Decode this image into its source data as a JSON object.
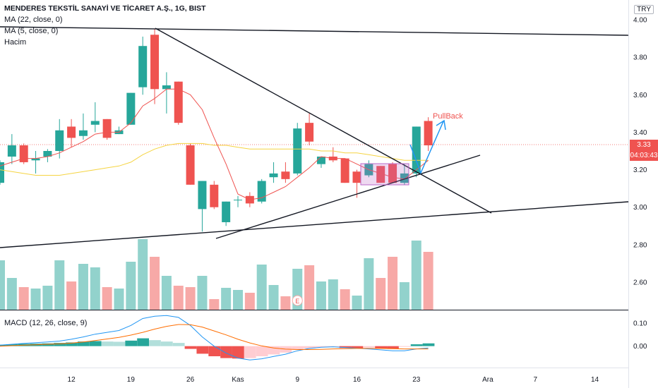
{
  "header": {
    "title": "MENDERES TEKSTİL SANAYİ VE TİCARET A.Ş., 1G, BIST",
    "ma22_label": "MA (22, close, 0)",
    "ma5_label": "MA (5, close, 0)",
    "volume_label": "Hacim",
    "macd_label": "MACD (12, 26, close, 9)",
    "currency": "TRY"
  },
  "current_price": {
    "value": "3.33",
    "countdown": "04:03:43",
    "color": "#ef5350"
  },
  "annotation": {
    "label": "PullBack",
    "color": "#ef5350"
  },
  "event_marker": {
    "label": "E"
  },
  "colors": {
    "up": "#26a69a",
    "down": "#ef5350",
    "ma22": "#f5d442",
    "ma5": "#ef5350",
    "macd": "#2196f3",
    "signal": "#ff6d00"
  },
  "chart_data": {
    "type": "candlestick",
    "price_axis": {
      "min": 2.45,
      "max": 4.0,
      "ticks": [
        2.6,
        2.8,
        3.0,
        3.2,
        3.4,
        3.6,
        3.8,
        4.0
      ],
      "tick_labels": [
        "2.60",
        "2.80",
        "3.00",
        "3.20",
        "3.40",
        "3.60",
        "3.80",
        "4.00"
      ]
    },
    "macd_axis": {
      "min": -0.09,
      "max": 0.14,
      "ticks": [
        0.0,
        0.1
      ],
      "tick_labels": [
        "0.00",
        "0.10"
      ]
    },
    "x_labels": [
      {
        "index": 6,
        "label": "12"
      },
      {
        "index": 11,
        "label": "19"
      },
      {
        "index": 16,
        "label": "26"
      },
      {
        "index": 20,
        "label": "Kas"
      },
      {
        "index": 25,
        "label": "9"
      },
      {
        "index": 30,
        "label": "16"
      },
      {
        "index": 35,
        "label": "23"
      },
      {
        "index": 41,
        "label": "Ara"
      },
      {
        "index": 45,
        "label": "7"
      },
      {
        "index": 50,
        "label": "14"
      }
    ],
    "candles": [
      {
        "o": 3.13,
        "h": 3.25,
        "l": 3.12,
        "c": 3.24
      },
      {
        "o": 3.27,
        "h": 3.39,
        "l": 3.23,
        "c": 3.33
      },
      {
        "o": 3.33,
        "h": 3.34,
        "l": 3.23,
        "c": 3.24
      },
      {
        "o": 3.25,
        "h": 3.3,
        "l": 3.18,
        "c": 3.26
      },
      {
        "o": 3.27,
        "h": 3.31,
        "l": 3.24,
        "c": 3.3
      },
      {
        "o": 3.3,
        "h": 3.47,
        "l": 3.26,
        "c": 3.41
      },
      {
        "o": 3.43,
        "h": 3.47,
        "l": 3.32,
        "c": 3.37
      },
      {
        "o": 3.38,
        "h": 3.5,
        "l": 3.36,
        "c": 3.41
      },
      {
        "o": 3.44,
        "h": 3.56,
        "l": 3.4,
        "c": 3.46
      },
      {
        "o": 3.47,
        "h": 3.47,
        "l": 3.36,
        "c": 3.37
      },
      {
        "o": 3.39,
        "h": 3.43,
        "l": 3.39,
        "c": 3.41
      },
      {
        "o": 3.44,
        "h": 3.61,
        "l": 3.44,
        "c": 3.61
      },
      {
        "o": 3.64,
        "h": 3.91,
        "l": 3.6,
        "c": 3.86
      },
      {
        "o": 3.92,
        "h": 3.95,
        "l": 3.55,
        "c": 3.63
      },
      {
        "o": 3.63,
        "h": 3.72,
        "l": 3.5,
        "c": 3.65
      },
      {
        "o": 3.67,
        "h": 3.67,
        "l": 3.44,
        "c": 3.45
      },
      {
        "o": 3.33,
        "h": 3.34,
        "l": 3.12,
        "c": 3.12
      },
      {
        "o": 2.99,
        "h": 3.14,
        "l": 2.87,
        "c": 3.14
      },
      {
        "o": 3.12,
        "h": 3.14,
        "l": 2.99,
        "c": 3.0
      },
      {
        "o": 2.92,
        "h": 3.03,
        "l": 2.9,
        "c": 3.03
      },
      {
        "o": 3.04,
        "h": 3.06,
        "l": 3.0,
        "c": 3.04
      },
      {
        "o": 3.06,
        "h": 3.08,
        "l": 3.0,
        "c": 3.02
      },
      {
        "o": 3.03,
        "h": 3.15,
        "l": 3.02,
        "c": 3.14
      },
      {
        "o": 3.16,
        "h": 3.24,
        "l": 3.13,
        "c": 3.18
      },
      {
        "o": 3.19,
        "h": 3.24,
        "l": 3.13,
        "c": 3.15
      },
      {
        "o": 3.18,
        "h": 3.45,
        "l": 3.17,
        "c": 3.42
      },
      {
        "o": 3.45,
        "h": 3.5,
        "l": 3.33,
        "c": 3.35
      },
      {
        "o": 3.23,
        "h": 3.27,
        "l": 3.21,
        "c": 3.27
      },
      {
        "o": 3.27,
        "h": 3.32,
        "l": 3.24,
        "c": 3.25
      },
      {
        "o": 3.26,
        "h": 3.26,
        "l": 3.13,
        "c": 3.13
      },
      {
        "o": 3.19,
        "h": 3.2,
        "l": 3.05,
        "c": 3.13
      },
      {
        "o": 3.17,
        "h": 3.25,
        "l": 3.16,
        "c": 3.23
      },
      {
        "o": 3.22,
        "h": 3.22,
        "l": 3.13,
        "c": 3.13
      },
      {
        "o": 3.23,
        "h": 3.24,
        "l": 3.13,
        "c": 3.13
      },
      {
        "o": 3.13,
        "h": 3.23,
        "l": 3.12,
        "c": 3.18
      },
      {
        "o": 3.18,
        "h": 3.43,
        "l": 3.16,
        "c": 3.43
      },
      {
        "o": 3.46,
        "h": 3.48,
        "l": 3.3,
        "c": 3.33
      }
    ],
    "ma5": [
      3.22,
      3.24,
      3.26,
      3.26,
      3.27,
      3.29,
      3.32,
      3.35,
      3.39,
      3.4,
      3.4,
      3.45,
      3.54,
      3.58,
      3.63,
      3.63,
      3.6,
      3.52,
      3.37,
      3.23,
      3.07,
      3.04,
      3.05,
      3.08,
      3.11,
      3.16,
      3.21,
      3.27,
      3.26,
      3.26,
      3.23,
      3.2,
      3.18,
      3.16,
      3.15,
      3.2,
      3.25
    ],
    "ma22": [
      3.2,
      3.19,
      3.18,
      3.17,
      3.17,
      3.17,
      3.18,
      3.19,
      3.2,
      3.21,
      3.22,
      3.24,
      3.28,
      3.31,
      3.33,
      3.34,
      3.34,
      3.34,
      3.33,
      3.33,
      3.32,
      3.31,
      3.31,
      3.31,
      3.31,
      3.31,
      3.31,
      3.3,
      3.3,
      3.29,
      3.29,
      3.28,
      3.27,
      3.26,
      3.25,
      3.25,
      3.25
    ],
    "volume": [
      {
        "v": 0.7,
        "up": true
      },
      {
        "v": 0.45,
        "up": true
      },
      {
        "v": 0.32,
        "up": false
      },
      {
        "v": 0.3,
        "up": true
      },
      {
        "v": 0.34,
        "up": true
      },
      {
        "v": 0.7,
        "up": true
      },
      {
        "v": 0.4,
        "up": false
      },
      {
        "v": 0.65,
        "up": true
      },
      {
        "v": 0.6,
        "up": true
      },
      {
        "v": 0.32,
        "up": false
      },
      {
        "v": 0.3,
        "up": true
      },
      {
        "v": 0.68,
        "up": true
      },
      {
        "v": 1.0,
        "up": true
      },
      {
        "v": 0.75,
        "up": false
      },
      {
        "v": 0.48,
        "up": true
      },
      {
        "v": 0.34,
        "up": false
      },
      {
        "v": 0.32,
        "up": false
      },
      {
        "v": 0.48,
        "up": true
      },
      {
        "v": 0.15,
        "up": false
      },
      {
        "v": 0.31,
        "up": true
      },
      {
        "v": 0.28,
        "up": true
      },
      {
        "v": 0.24,
        "up": false
      },
      {
        "v": 0.64,
        "up": true
      },
      {
        "v": 0.35,
        "up": true
      },
      {
        "v": 0.19,
        "up": false
      },
      {
        "v": 0.58,
        "up": true
      },
      {
        "v": 0.63,
        "up": false
      },
      {
        "v": 0.4,
        "up": true
      },
      {
        "v": 0.43,
        "up": true
      },
      {
        "v": 0.29,
        "up": false
      },
      {
        "v": 0.2,
        "up": true
      },
      {
        "v": 0.73,
        "up": true
      },
      {
        "v": 0.45,
        "up": false
      },
      {
        "v": 0.75,
        "up": false
      },
      {
        "v": 0.39,
        "up": true
      },
      {
        "v": 0.98,
        "up": true
      },
      {
        "v": 0.82,
        "up": false
      }
    ],
    "macd_hist": [
      0.006,
      0.008,
      0.01,
      0.011,
      0.012,
      0.014,
      0.016,
      0.02,
      0.022,
      0.02,
      0.019,
      0.024,
      0.034,
      0.026,
      0.02,
      0.014,
      -0.012,
      -0.033,
      -0.044,
      -0.052,
      -0.054,
      -0.052,
      -0.044,
      -0.036,
      -0.028,
      -0.016,
      -0.01,
      -0.005,
      -0.003,
      -0.008,
      -0.01,
      -0.006,
      -0.01,
      -0.012,
      -0.003,
      0.008,
      0.012
    ],
    "macd_line": [
      0.004,
      0.008,
      0.012,
      0.015,
      0.018,
      0.022,
      0.03,
      0.04,
      0.052,
      0.06,
      0.068,
      0.09,
      0.12,
      0.13,
      0.133,
      0.125,
      0.09,
      0.04,
      0.0,
      -0.03,
      -0.052,
      -0.06,
      -0.055,
      -0.045,
      -0.035,
      -0.02,
      -0.01,
      -0.005,
      -0.003,
      -0.006,
      -0.009,
      -0.012,
      -0.016,
      -0.02,
      -0.02,
      -0.012,
      -0.008
    ],
    "signal_line": [
      0.0,
      0.002,
      0.004,
      0.006,
      0.008,
      0.01,
      0.013,
      0.018,
      0.024,
      0.031,
      0.038,
      0.048,
      0.06,
      0.074,
      0.086,
      0.094,
      0.093,
      0.083,
      0.066,
      0.049,
      0.03,
      0.014,
      0.001,
      -0.008,
      -0.013,
      -0.015,
      -0.015,
      -0.014,
      -0.012,
      -0.011,
      -0.01,
      -0.01,
      -0.01,
      -0.011,
      -0.012,
      -0.012,
      -0.012
    ]
  }
}
